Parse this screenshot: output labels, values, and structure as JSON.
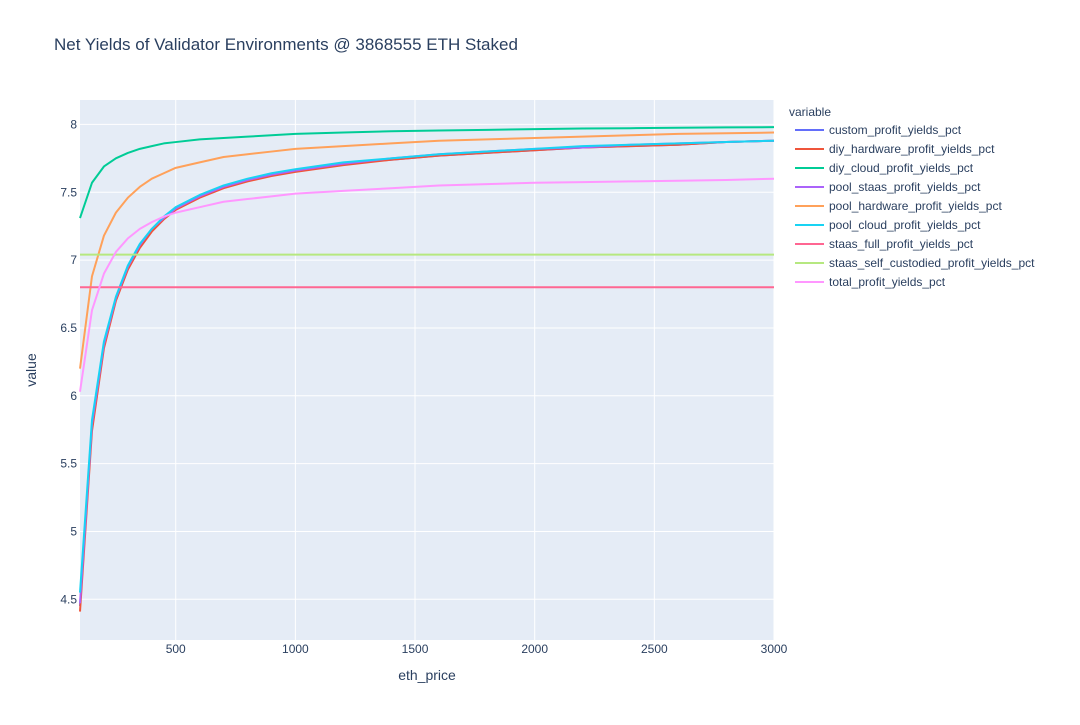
{
  "chart_data": {
    "type": "line",
    "title": "Net Yields of Validator Environments @ 3868555 ETH Staked",
    "xlabel": "eth_price",
    "ylabel": "value",
    "xlim": [
      100,
      3000
    ],
    "ylim": [
      4.2,
      8.18
    ],
    "x_ticks": [
      500,
      1000,
      1500,
      2000,
      2500,
      3000
    ],
    "y_ticks": [
      4.5,
      5,
      5.5,
      6,
      6.5,
      7,
      7.5,
      8
    ],
    "grid": true,
    "legend": {
      "title": "variable",
      "placement": "right"
    },
    "series": [
      {
        "name": "custom_profit_yields_pct",
        "color": "#636efa",
        "x": [
          100,
          150,
          200,
          250,
          300,
          350,
          400,
          450,
          500,
          600,
          700,
          800,
          900,
          1000,
          1200,
          1400,
          1600,
          1800,
          2000,
          2200,
          2400,
          2600,
          2800,
          3000
        ],
        "y": [
          4.45,
          5.78,
          6.37,
          6.71,
          6.94,
          7.1,
          7.22,
          7.31,
          7.38,
          7.47,
          7.54,
          7.59,
          7.63,
          7.66,
          7.71,
          7.74,
          7.77,
          7.79,
          7.81,
          7.83,
          7.84,
          7.85,
          7.87,
          7.88
        ]
      },
      {
        "name": "diy_hardware_profit_yields_pct",
        "color": "#ef553b",
        "x": [
          100,
          150,
          200,
          250,
          300,
          350,
          400,
          450,
          500,
          600,
          700,
          800,
          900,
          1000,
          1200,
          1400,
          1600,
          1800,
          2000,
          2200,
          2400,
          2600,
          2800,
          3000
        ],
        "y": [
          4.41,
          5.74,
          6.35,
          6.7,
          6.93,
          7.09,
          7.21,
          7.3,
          7.37,
          7.46,
          7.53,
          7.58,
          7.62,
          7.65,
          7.7,
          7.74,
          7.77,
          7.79,
          7.81,
          7.83,
          7.84,
          7.85,
          7.87,
          7.88
        ]
      },
      {
        "name": "diy_cloud_profit_yields_pct",
        "color": "#00cc96",
        "x": [
          100,
          150,
          200,
          250,
          300,
          350,
          400,
          450,
          500,
          600,
          700,
          800,
          900,
          1000,
          1200,
          1400,
          1600,
          1800,
          2000,
          2200,
          2400,
          2600,
          2800,
          3000
        ],
        "y": [
          7.31,
          7.57,
          7.69,
          7.75,
          7.79,
          7.82,
          7.84,
          7.86,
          7.87,
          7.89,
          7.9,
          7.91,
          7.92,
          7.93,
          7.94,
          7.95,
          7.955,
          7.96,
          7.965,
          7.97,
          7.972,
          7.975,
          7.978,
          7.98
        ]
      },
      {
        "name": "pool_staas_profit_yields_pct",
        "color": "#ab63fa",
        "x": [
          100,
          150,
          200,
          250,
          300,
          350,
          400,
          450,
          500,
          600,
          700,
          800,
          900,
          1000,
          1200,
          1400,
          1600,
          1800,
          2000,
          2200,
          2400,
          2600,
          2800,
          3000
        ],
        "y": [
          4.47,
          5.79,
          6.38,
          6.72,
          6.95,
          7.11,
          7.23,
          7.31,
          7.38,
          7.47,
          7.54,
          7.59,
          7.63,
          7.66,
          7.71,
          7.75,
          7.78,
          7.8,
          7.82,
          7.83,
          7.85,
          7.86,
          7.87,
          7.88
        ]
      },
      {
        "name": "pool_hardware_profit_yields_pct",
        "color": "#ffa15a",
        "x": [
          100,
          150,
          200,
          250,
          300,
          350,
          400,
          450,
          500,
          600,
          700,
          800,
          900,
          1000,
          1200,
          1400,
          1600,
          1800,
          2000,
          2200,
          2400,
          2600,
          2800,
          3000
        ],
        "y": [
          6.2,
          6.88,
          7.18,
          7.35,
          7.46,
          7.54,
          7.6,
          7.64,
          7.68,
          7.72,
          7.76,
          7.78,
          7.8,
          7.82,
          7.84,
          7.86,
          7.88,
          7.89,
          7.9,
          7.91,
          7.92,
          7.93,
          7.935,
          7.94
        ]
      },
      {
        "name": "pool_cloud_profit_yields_pct",
        "color": "#19d3f3",
        "x": [
          100,
          150,
          200,
          250,
          300,
          350,
          400,
          450,
          500,
          600,
          700,
          800,
          900,
          1000,
          1200,
          1400,
          1600,
          1800,
          2000,
          2200,
          2400,
          2600,
          2800,
          3000
        ],
        "y": [
          4.55,
          5.82,
          6.4,
          6.73,
          6.96,
          7.12,
          7.23,
          7.32,
          7.39,
          7.48,
          7.55,
          7.6,
          7.64,
          7.67,
          7.72,
          7.75,
          7.78,
          7.8,
          7.82,
          7.84,
          7.85,
          7.86,
          7.87,
          7.88
        ]
      },
      {
        "name": "staas_full_profit_yields_pct",
        "color": "#ff6692",
        "x": [
          100,
          3000
        ],
        "y": [
          6.8,
          6.8
        ]
      },
      {
        "name": "staas_self_custodied_profit_yields_pct",
        "color": "#b6e880",
        "x": [
          100,
          3000
        ],
        "y": [
          7.04,
          7.04
        ]
      },
      {
        "name": "total_profit_yields_pct",
        "color": "#ff97ff",
        "x": [
          100,
          150,
          200,
          250,
          300,
          350,
          400,
          450,
          500,
          600,
          700,
          800,
          900,
          1000,
          1200,
          1400,
          1600,
          1800,
          2000,
          2200,
          2400,
          2600,
          2800,
          3000
        ],
        "y": [
          6.03,
          6.63,
          6.9,
          7.06,
          7.16,
          7.23,
          7.28,
          7.32,
          7.35,
          7.39,
          7.43,
          7.45,
          7.47,
          7.49,
          7.51,
          7.53,
          7.55,
          7.56,
          7.57,
          7.575,
          7.58,
          7.585,
          7.59,
          7.6
        ]
      }
    ]
  }
}
